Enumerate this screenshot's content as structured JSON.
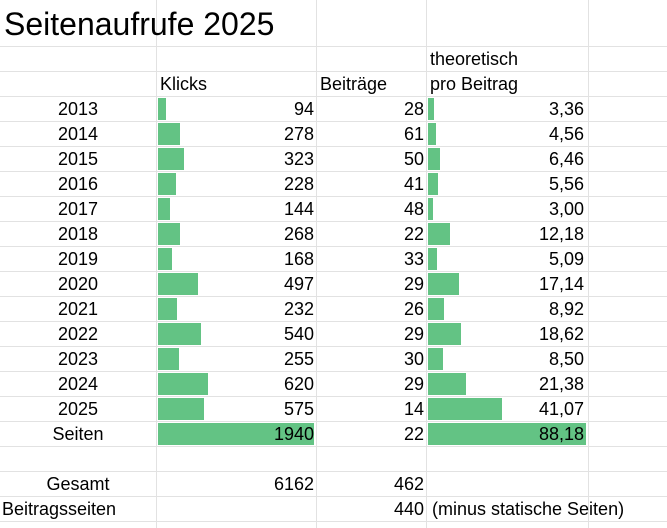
{
  "title": "Seitenaufrufe 2025",
  "headers": {
    "klicks": "Klicks",
    "beitraege": "Beiträge",
    "theoretisch_line1": "theoretisch",
    "theoretisch_line2": "pro Beitrag"
  },
  "colors": {
    "bar": "#63c384",
    "grid": "#e2e2e2"
  },
  "rows": [
    {
      "year": "2013",
      "klicks": "94",
      "beitraege": "28",
      "pro_beitrag": "3,36"
    },
    {
      "year": "2014",
      "klicks": "278",
      "beitraege": "61",
      "pro_beitrag": "4,56"
    },
    {
      "year": "2015",
      "klicks": "323",
      "beitraege": "50",
      "pro_beitrag": "6,46"
    },
    {
      "year": "2016",
      "klicks": "228",
      "beitraege": "41",
      "pro_beitrag": "5,56"
    },
    {
      "year": "2017",
      "klicks": "144",
      "beitraege": "48",
      "pro_beitrag": "3,00"
    },
    {
      "year": "2018",
      "klicks": "268",
      "beitraege": "22",
      "pro_beitrag": "12,18"
    },
    {
      "year": "2019",
      "klicks": "168",
      "beitraege": "33",
      "pro_beitrag": "5,09"
    },
    {
      "year": "2020",
      "klicks": "497",
      "beitraege": "29",
      "pro_beitrag": "17,14"
    },
    {
      "year": "2021",
      "klicks": "232",
      "beitraege": "26",
      "pro_beitrag": "8,92"
    },
    {
      "year": "2022",
      "klicks": "540",
      "beitraege": "29",
      "pro_beitrag": "18,62"
    },
    {
      "year": "2023",
      "klicks": "255",
      "beitraege": "30",
      "pro_beitrag": "8,50"
    },
    {
      "year": "2024",
      "klicks": "620",
      "beitraege": "29",
      "pro_beitrag": "21,38"
    },
    {
      "year": "2025",
      "klicks": "575",
      "beitraege": "14",
      "pro_beitrag": "41,07"
    },
    {
      "year": "Seiten",
      "klicks": "1940",
      "beitraege": "22",
      "pro_beitrag": "88,18"
    }
  ],
  "gesamt": {
    "label": "Gesamt",
    "klicks": "6162",
    "beitraege": "462"
  },
  "beitragsseiten": {
    "label": "Beitragsseiten",
    "value": "440",
    "note": "(minus statische Seiten)"
  }
}
